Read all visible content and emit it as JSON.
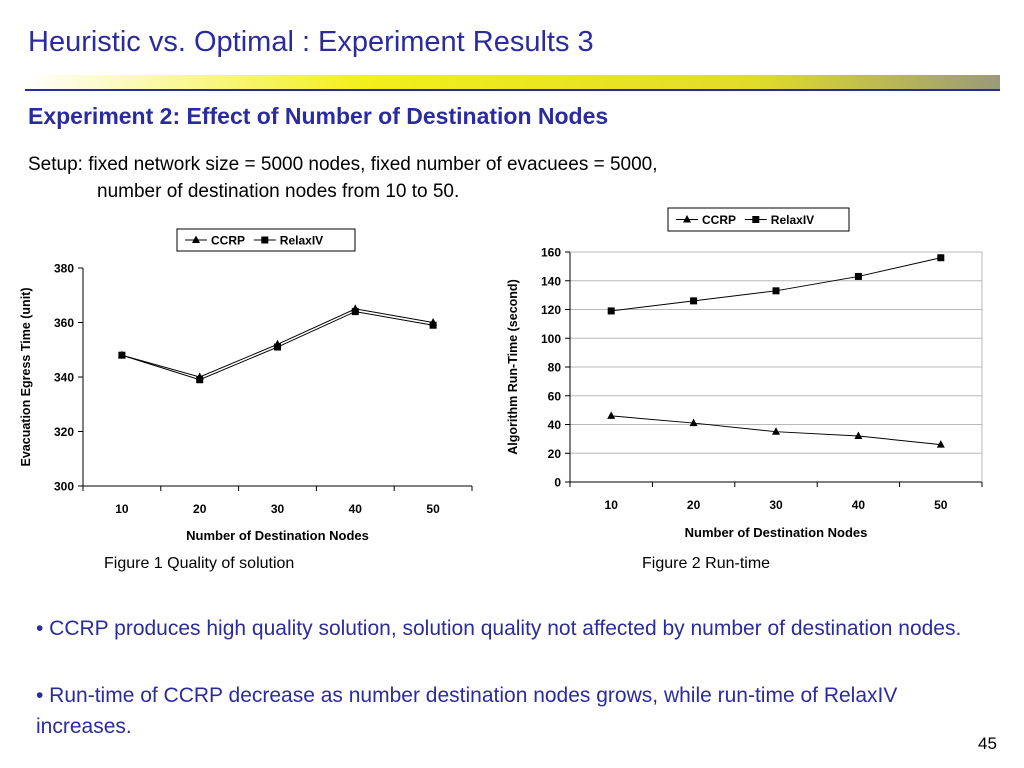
{
  "slide": {
    "title": "Heuristic vs. Optimal : Experiment Results 3",
    "subtitle": "Experiment 2: Effect of Number of Destination Nodes",
    "setup_line1": "Setup: fixed network size = 5000 nodes, fixed number of evacuees = 5000,",
    "setup_line2": "number of destination nodes from  10 to 50.",
    "caption1": "Figure 1 Quality of solution",
    "caption2": "Figure 2  Run-time",
    "bullet1": "• CCRP produces high quality solution, solution quality not affected by number of destination nodes.",
    "bullet2": "• Run-time of CCRP decrease as number destination nodes grows, while run-time of RelaxIV increases.",
    "page_number": "45",
    "colors": {
      "title_text": "#2b2ba0",
      "bar_yellow": "#f2ef1a",
      "bar_blue": "#2b2ba0"
    }
  },
  "chart_data": [
    {
      "type": "line",
      "x": [
        10,
        20,
        30,
        40,
        50
      ],
      "xlabel": "Number of Destination Nodes",
      "ylabel": "Evacuation Egress Time (unit)",
      "ylim": [
        300,
        380
      ],
      "yticks": [
        300,
        320,
        340,
        360,
        380
      ],
      "grid": false,
      "legend": "top",
      "series": [
        {
          "name": "CCRP",
          "marker": "triangle",
          "values": [
            348,
            340,
            352,
            365,
            360
          ]
        },
        {
          "name": "RelaxIV",
          "marker": "square",
          "values": [
            348,
            339,
            351,
            364,
            359
          ]
        }
      ]
    },
    {
      "type": "line",
      "x": [
        10,
        20,
        30,
        40,
        50
      ],
      "xlabel": "Number of Destination Nodes",
      "ylabel": "Algorithm Run-Time (second)",
      "ylim": [
        0,
        160
      ],
      "yticks": [
        0,
        20,
        40,
        60,
        80,
        100,
        120,
        140,
        160
      ],
      "grid": true,
      "legend": "top",
      "series": [
        {
          "name": "CCRP",
          "marker": "triangle",
          "values": [
            46,
            41,
            35,
            32,
            26
          ]
        },
        {
          "name": "RelaxIV",
          "marker": "square",
          "values": [
            119,
            126,
            133,
            143,
            156
          ]
        }
      ]
    }
  ]
}
